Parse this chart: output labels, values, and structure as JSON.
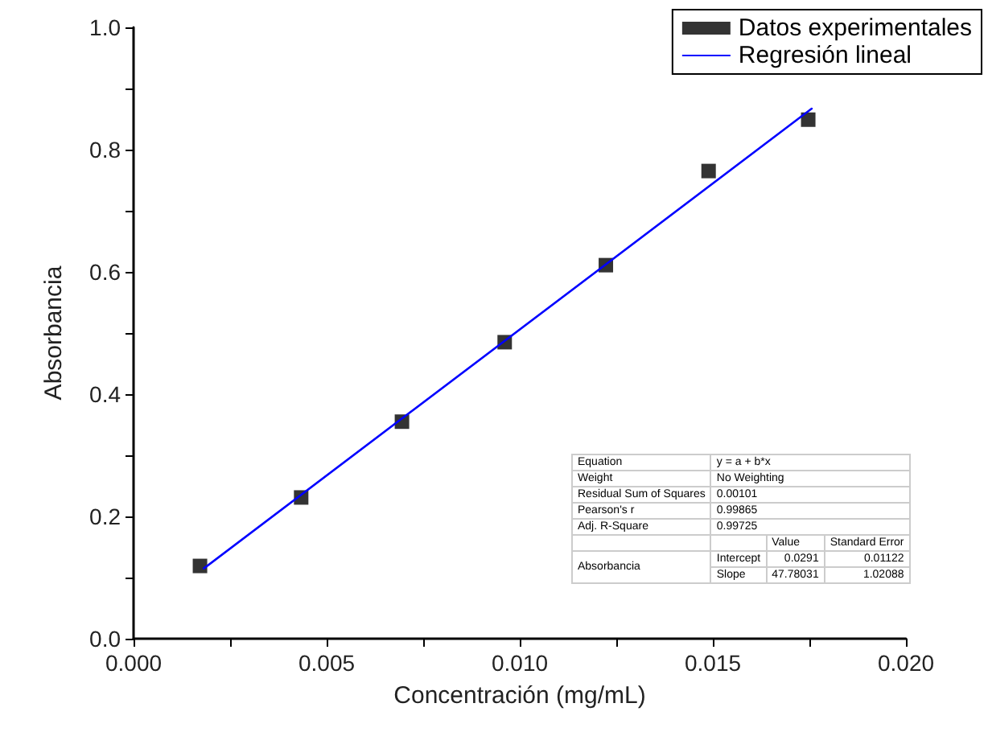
{
  "chart_data": {
    "type": "scatter",
    "xlabel": "Concentración (mg/mL)",
    "ylabel": "Absorbancia",
    "xlim": [
      0,
      0.02
    ],
    "xticks": [
      {
        "value": 0,
        "label": "0.000"
      },
      {
        "value": 0.0025,
        "label": null
      },
      {
        "value": 0.005,
        "label": "0.005"
      },
      {
        "value": 0.0075,
        "label": null
      },
      {
        "value": 0.01,
        "label": "0.010"
      },
      {
        "value": 0.0125,
        "label": null
      },
      {
        "value": 0.015,
        "label": "0.015"
      },
      {
        "value": 0.0175,
        "label": null
      },
      {
        "value": 0.02,
        "label": "0.020"
      }
    ],
    "ylim": [
      0,
      1
    ],
    "yticks": [
      {
        "value": 0,
        "label": "0.0"
      },
      {
        "value": 0.1,
        "label": null
      },
      {
        "value": 0.2,
        "label": "0.2"
      },
      {
        "value": 0.3,
        "label": null
      },
      {
        "value": 0.4,
        "label": "0.4"
      },
      {
        "value": 0.5,
        "label": null
      },
      {
        "value": 0.6,
        "label": "0.6"
      },
      {
        "value": 0.7,
        "label": null
      },
      {
        "value": 0.8,
        "label": "0.8"
      },
      {
        "value": 0.9,
        "label": null
      },
      {
        "value": 1,
        "label": "1.0"
      }
    ],
    "series": [
      {
        "name": "Datos experimentales",
        "color": "#000000",
        "marker": "square",
        "x": [
          0.00172,
          0.00434,
          0.00695,
          0.00961,
          0.01223,
          0.01489,
          0.01747
        ],
        "values": [
          0.119,
          0.231,
          0.355,
          0.485,
          0.611,
          0.765,
          0.849
        ]
      },
      {
        "name": "Regresión lineal",
        "type": "line",
        "color": "#0000ff",
        "line_style": "solid",
        "marker": "none",
        "x": [
          0.00182,
          0.01756
        ],
        "values": [
          0.115,
          0.867
        ]
      }
    ],
    "legend": "top right",
    "grid": false,
    "annotations": [
      "Equation",
      "y = a + b*x",
      "Weight",
      "No Weighting",
      "Residual Sum of Squares",
      "0.00101",
      "Pearson's r",
      "0.99865",
      "Adj. R-Square",
      "0.99725",
      "Value",
      "Standard Error",
      "Absorbancia",
      "Intercept",
      "0.0291",
      "0.01122",
      "Slope",
      "47.78031",
      "1.02088"
    ]
  }
}
